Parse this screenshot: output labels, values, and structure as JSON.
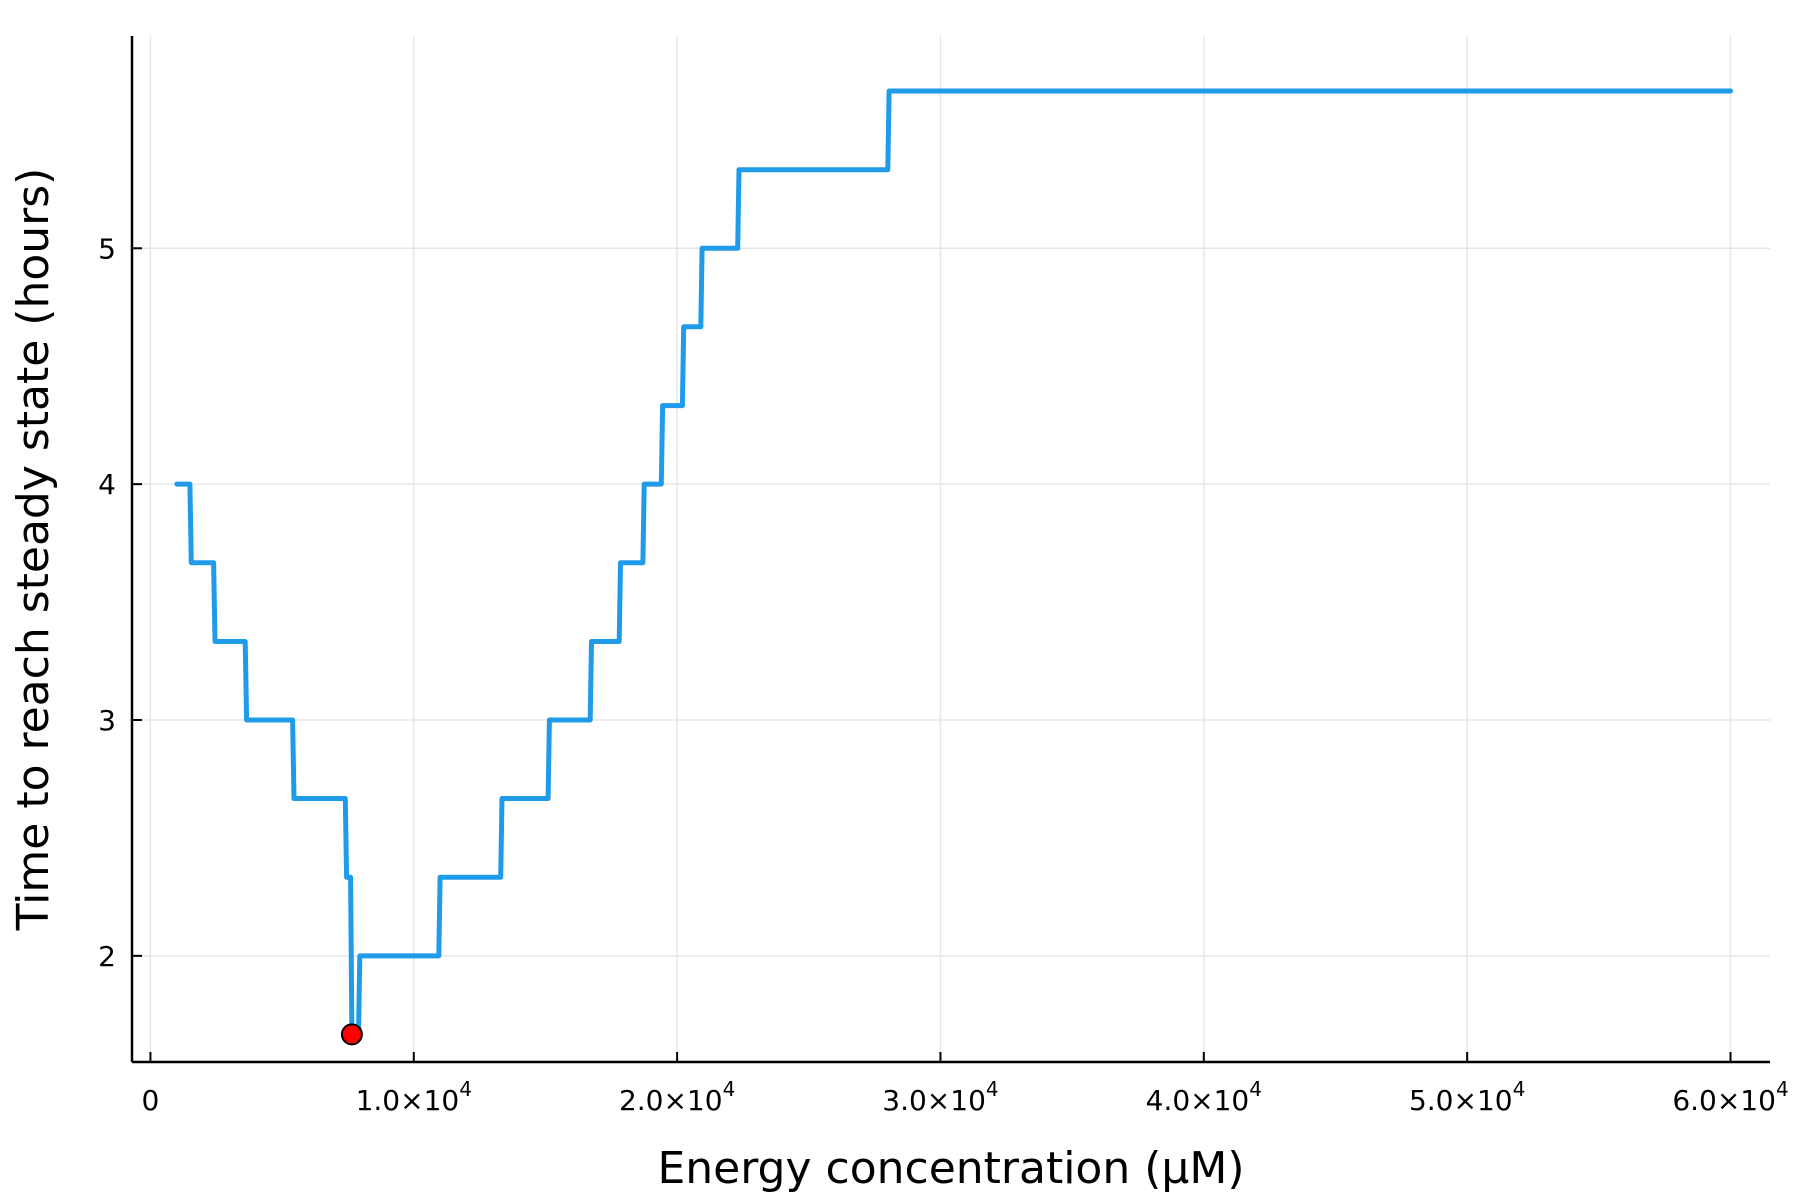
{
  "chart_data": {
    "type": "line",
    "title": "",
    "xlabel": "Energy concentration (μM)",
    "ylabel": "Time to reach steady state (hours)",
    "xlim": [
      -700,
      61500
    ],
    "ylim": [
      1.55,
      5.9
    ],
    "grid": true,
    "legend": "none",
    "x_ticks": [
      {
        "value": 0,
        "label": "0"
      },
      {
        "value": 10000,
        "label": "1.0×10",
        "exp": "4"
      },
      {
        "value": 20000,
        "label": "2.0×10",
        "exp": "4"
      },
      {
        "value": 30000,
        "label": "3.0×10",
        "exp": "4"
      },
      {
        "value": 40000,
        "label": "4.0×10",
        "exp": "4"
      },
      {
        "value": 50000,
        "label": "5.0×10",
        "exp": "4"
      },
      {
        "value": 60000,
        "label": "6.0×10",
        "exp": "4"
      }
    ],
    "y_ticks": [
      {
        "value": 2,
        "label": "2"
      },
      {
        "value": 3,
        "label": "3"
      },
      {
        "value": 4,
        "label": "4"
      },
      {
        "value": 5,
        "label": "5"
      }
    ],
    "series": [
      {
        "color": "#1f9bea",
        "x": [
          1000,
          1500,
          1550,
          2400,
          2450,
          3600,
          3650,
          5400,
          5450,
          7400,
          7450,
          7600,
          7650,
          7900,
          7950,
          10950,
          11000,
          13300,
          13350,
          15100,
          15150,
          16700,
          16750,
          17800,
          17850,
          18700,
          18750,
          19400,
          19450,
          20200,
          20250,
          20900,
          20950,
          22300,
          22350,
          28000,
          28050,
          60000
        ],
        "y": [
          4.0,
          4.0,
          3.667,
          3.667,
          3.333,
          3.333,
          3.0,
          3.0,
          2.667,
          2.667,
          2.333,
          2.333,
          1.667,
          1.667,
          2.0,
          2.0,
          2.333,
          2.333,
          2.667,
          2.667,
          3.0,
          3.0,
          3.333,
          3.333,
          3.667,
          3.667,
          4.0,
          4.0,
          4.333,
          4.333,
          4.667,
          4.667,
          5.0,
          5.0,
          5.333,
          5.333,
          5.667,
          5.667
        ]
      }
    ],
    "markers": [
      {
        "x": 7650,
        "y": 1.667,
        "color": "#ff0000",
        "stroke": "#000000"
      }
    ]
  }
}
